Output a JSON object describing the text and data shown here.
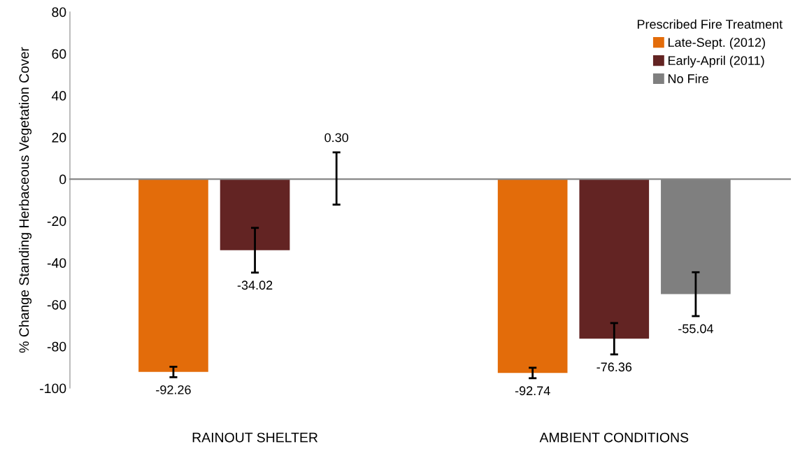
{
  "chart_data": {
    "type": "bar",
    "ylabel": "% Change Standing Herbaceous Vegetation Cover",
    "legend_title": "Prescribed Fire Treatment",
    "categories": [
      "RAINOUT SHELTER",
      "AMBIENT CONDITIONS"
    ],
    "series": [
      {
        "name": "Late-Sept. (2012)",
        "color": "#e36c0a",
        "values": [
          -92.26,
          -92.74
        ],
        "errors": [
          2.5,
          2.5
        ],
        "value_labels": [
          "-92.26",
          "-92.74"
        ]
      },
      {
        "name": "Early-April (2011)",
        "color": "#632423",
        "values": [
          -34.02,
          -76.36
        ],
        "errors": [
          10.7,
          7.5
        ],
        "value_labels": [
          "-34.02",
          "-76.36"
        ]
      },
      {
        "name": "No Fire",
        "color": "#7f7f7f",
        "values": [
          0.3,
          -55.04
        ],
        "errors": [
          12.5,
          10.5
        ],
        "value_labels": [
          "0.30",
          "-55.04"
        ]
      }
    ],
    "ylim": [
      -100,
      80
    ],
    "yticks": [
      -100,
      -80,
      -60,
      -40,
      -20,
      0,
      20,
      40,
      60,
      80
    ],
    "legend": "top right"
  }
}
